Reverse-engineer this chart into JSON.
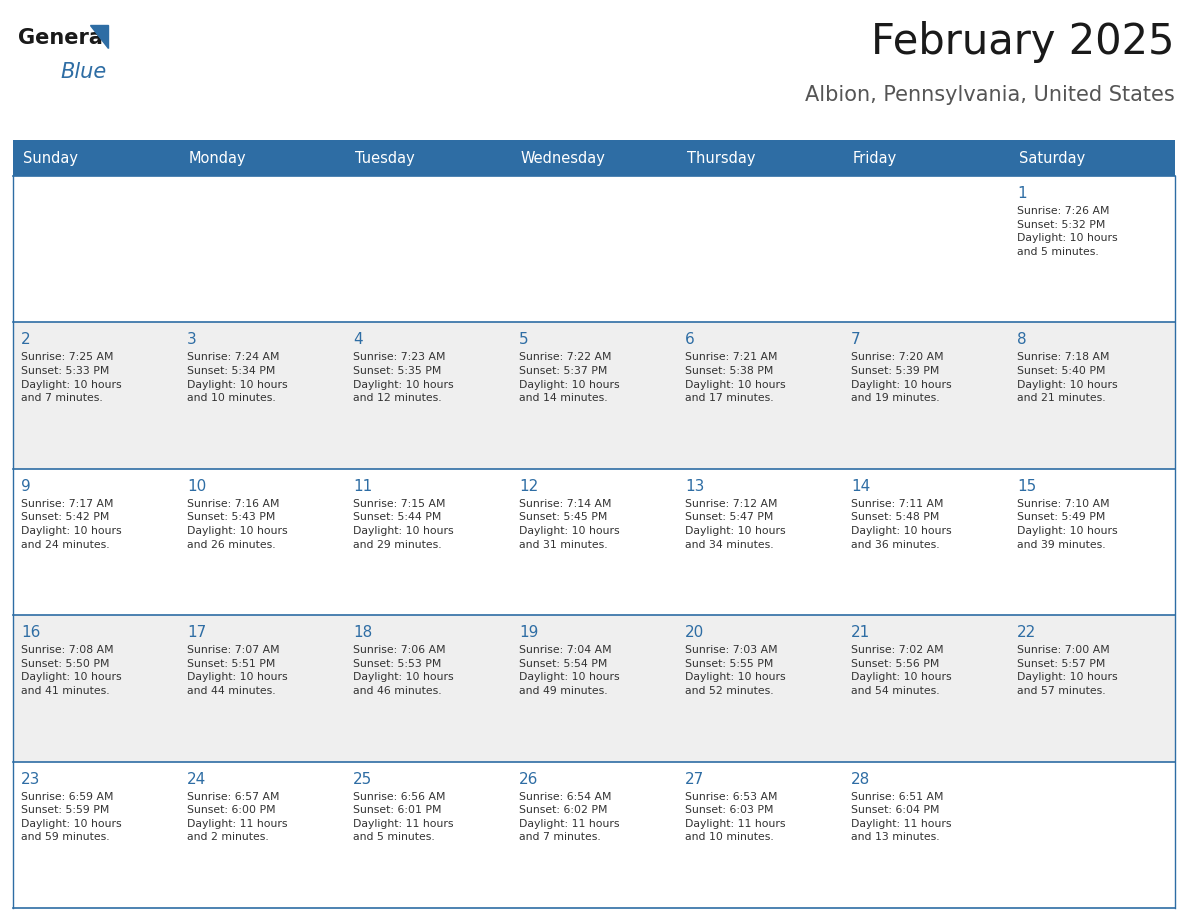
{
  "title": "February 2025",
  "subtitle": "Albion, Pennsylvania, United States",
  "header_bg": "#2E6DA4",
  "header_text_color": "#FFFFFF",
  "cell_bg_even": "#FFFFFF",
  "cell_bg_odd": "#EFEFEF",
  "day_number_color": "#2E6DA4",
  "cell_text_color": "#333333",
  "border_color": "#2E6DA4",
  "days_of_week": [
    "Sunday",
    "Monday",
    "Tuesday",
    "Wednesday",
    "Thursday",
    "Friday",
    "Saturday"
  ],
  "weeks": [
    [
      {
        "day": null,
        "info": null
      },
      {
        "day": null,
        "info": null
      },
      {
        "day": null,
        "info": null
      },
      {
        "day": null,
        "info": null
      },
      {
        "day": null,
        "info": null
      },
      {
        "day": null,
        "info": null
      },
      {
        "day": 1,
        "info": "Sunrise: 7:26 AM\nSunset: 5:32 PM\nDaylight: 10 hours\nand 5 minutes."
      }
    ],
    [
      {
        "day": 2,
        "info": "Sunrise: 7:25 AM\nSunset: 5:33 PM\nDaylight: 10 hours\nand 7 minutes."
      },
      {
        "day": 3,
        "info": "Sunrise: 7:24 AM\nSunset: 5:34 PM\nDaylight: 10 hours\nand 10 minutes."
      },
      {
        "day": 4,
        "info": "Sunrise: 7:23 AM\nSunset: 5:35 PM\nDaylight: 10 hours\nand 12 minutes."
      },
      {
        "day": 5,
        "info": "Sunrise: 7:22 AM\nSunset: 5:37 PM\nDaylight: 10 hours\nand 14 minutes."
      },
      {
        "day": 6,
        "info": "Sunrise: 7:21 AM\nSunset: 5:38 PM\nDaylight: 10 hours\nand 17 minutes."
      },
      {
        "day": 7,
        "info": "Sunrise: 7:20 AM\nSunset: 5:39 PM\nDaylight: 10 hours\nand 19 minutes."
      },
      {
        "day": 8,
        "info": "Sunrise: 7:18 AM\nSunset: 5:40 PM\nDaylight: 10 hours\nand 21 minutes."
      }
    ],
    [
      {
        "day": 9,
        "info": "Sunrise: 7:17 AM\nSunset: 5:42 PM\nDaylight: 10 hours\nand 24 minutes."
      },
      {
        "day": 10,
        "info": "Sunrise: 7:16 AM\nSunset: 5:43 PM\nDaylight: 10 hours\nand 26 minutes."
      },
      {
        "day": 11,
        "info": "Sunrise: 7:15 AM\nSunset: 5:44 PM\nDaylight: 10 hours\nand 29 minutes."
      },
      {
        "day": 12,
        "info": "Sunrise: 7:14 AM\nSunset: 5:45 PM\nDaylight: 10 hours\nand 31 minutes."
      },
      {
        "day": 13,
        "info": "Sunrise: 7:12 AM\nSunset: 5:47 PM\nDaylight: 10 hours\nand 34 minutes."
      },
      {
        "day": 14,
        "info": "Sunrise: 7:11 AM\nSunset: 5:48 PM\nDaylight: 10 hours\nand 36 minutes."
      },
      {
        "day": 15,
        "info": "Sunrise: 7:10 AM\nSunset: 5:49 PM\nDaylight: 10 hours\nand 39 minutes."
      }
    ],
    [
      {
        "day": 16,
        "info": "Sunrise: 7:08 AM\nSunset: 5:50 PM\nDaylight: 10 hours\nand 41 minutes."
      },
      {
        "day": 17,
        "info": "Sunrise: 7:07 AM\nSunset: 5:51 PM\nDaylight: 10 hours\nand 44 minutes."
      },
      {
        "day": 18,
        "info": "Sunrise: 7:06 AM\nSunset: 5:53 PM\nDaylight: 10 hours\nand 46 minutes."
      },
      {
        "day": 19,
        "info": "Sunrise: 7:04 AM\nSunset: 5:54 PM\nDaylight: 10 hours\nand 49 minutes."
      },
      {
        "day": 20,
        "info": "Sunrise: 7:03 AM\nSunset: 5:55 PM\nDaylight: 10 hours\nand 52 minutes."
      },
      {
        "day": 21,
        "info": "Sunrise: 7:02 AM\nSunset: 5:56 PM\nDaylight: 10 hours\nand 54 minutes."
      },
      {
        "day": 22,
        "info": "Sunrise: 7:00 AM\nSunset: 5:57 PM\nDaylight: 10 hours\nand 57 minutes."
      }
    ],
    [
      {
        "day": 23,
        "info": "Sunrise: 6:59 AM\nSunset: 5:59 PM\nDaylight: 10 hours\nand 59 minutes."
      },
      {
        "day": 24,
        "info": "Sunrise: 6:57 AM\nSunset: 6:00 PM\nDaylight: 11 hours\nand 2 minutes."
      },
      {
        "day": 25,
        "info": "Sunrise: 6:56 AM\nSunset: 6:01 PM\nDaylight: 11 hours\nand 5 minutes."
      },
      {
        "day": 26,
        "info": "Sunrise: 6:54 AM\nSunset: 6:02 PM\nDaylight: 11 hours\nand 7 minutes."
      },
      {
        "day": 27,
        "info": "Sunrise: 6:53 AM\nSunset: 6:03 PM\nDaylight: 11 hours\nand 10 minutes."
      },
      {
        "day": 28,
        "info": "Sunrise: 6:51 AM\nSunset: 6:04 PM\nDaylight: 11 hours\nand 13 minutes."
      },
      {
        "day": null,
        "info": null
      }
    ]
  ],
  "logo_general_color": "#1a1a1a",
  "logo_blue_color": "#2E6DA4",
  "logo_triangle_color": "#2E6DA4",
  "fig_width": 11.88,
  "fig_height": 9.18,
  "dpi": 100
}
